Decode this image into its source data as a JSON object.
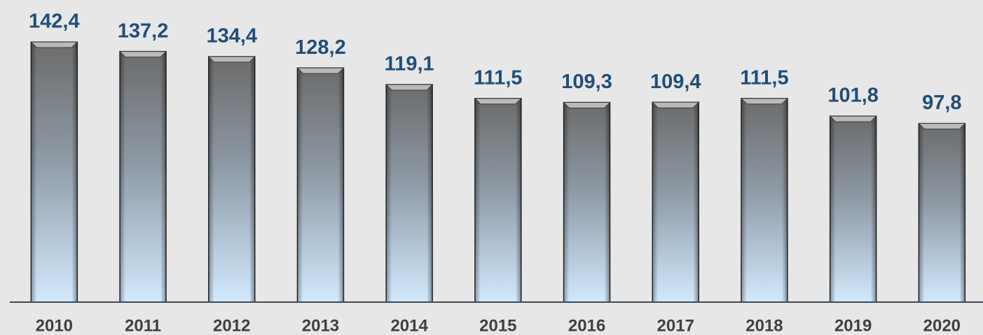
{
  "chart_data": {
    "type": "bar",
    "categories": [
      "2010",
      "2011",
      "2012",
      "2013",
      "2014",
      "2015",
      "2016",
      "2017",
      "2018",
      "2019",
      "2020"
    ],
    "values": [
      142.4,
      137.2,
      134.4,
      128.2,
      119.1,
      111.5,
      109.3,
      109.4,
      111.5,
      101.8,
      97.8
    ],
    "value_labels": [
      "142,4",
      "137,2",
      "134,4",
      "128,2",
      "119,1",
      "111,5",
      "109,3",
      "109,4",
      "111,5",
      "101,8",
      "97,8"
    ],
    "ylim": [
      0,
      165
    ]
  }
}
